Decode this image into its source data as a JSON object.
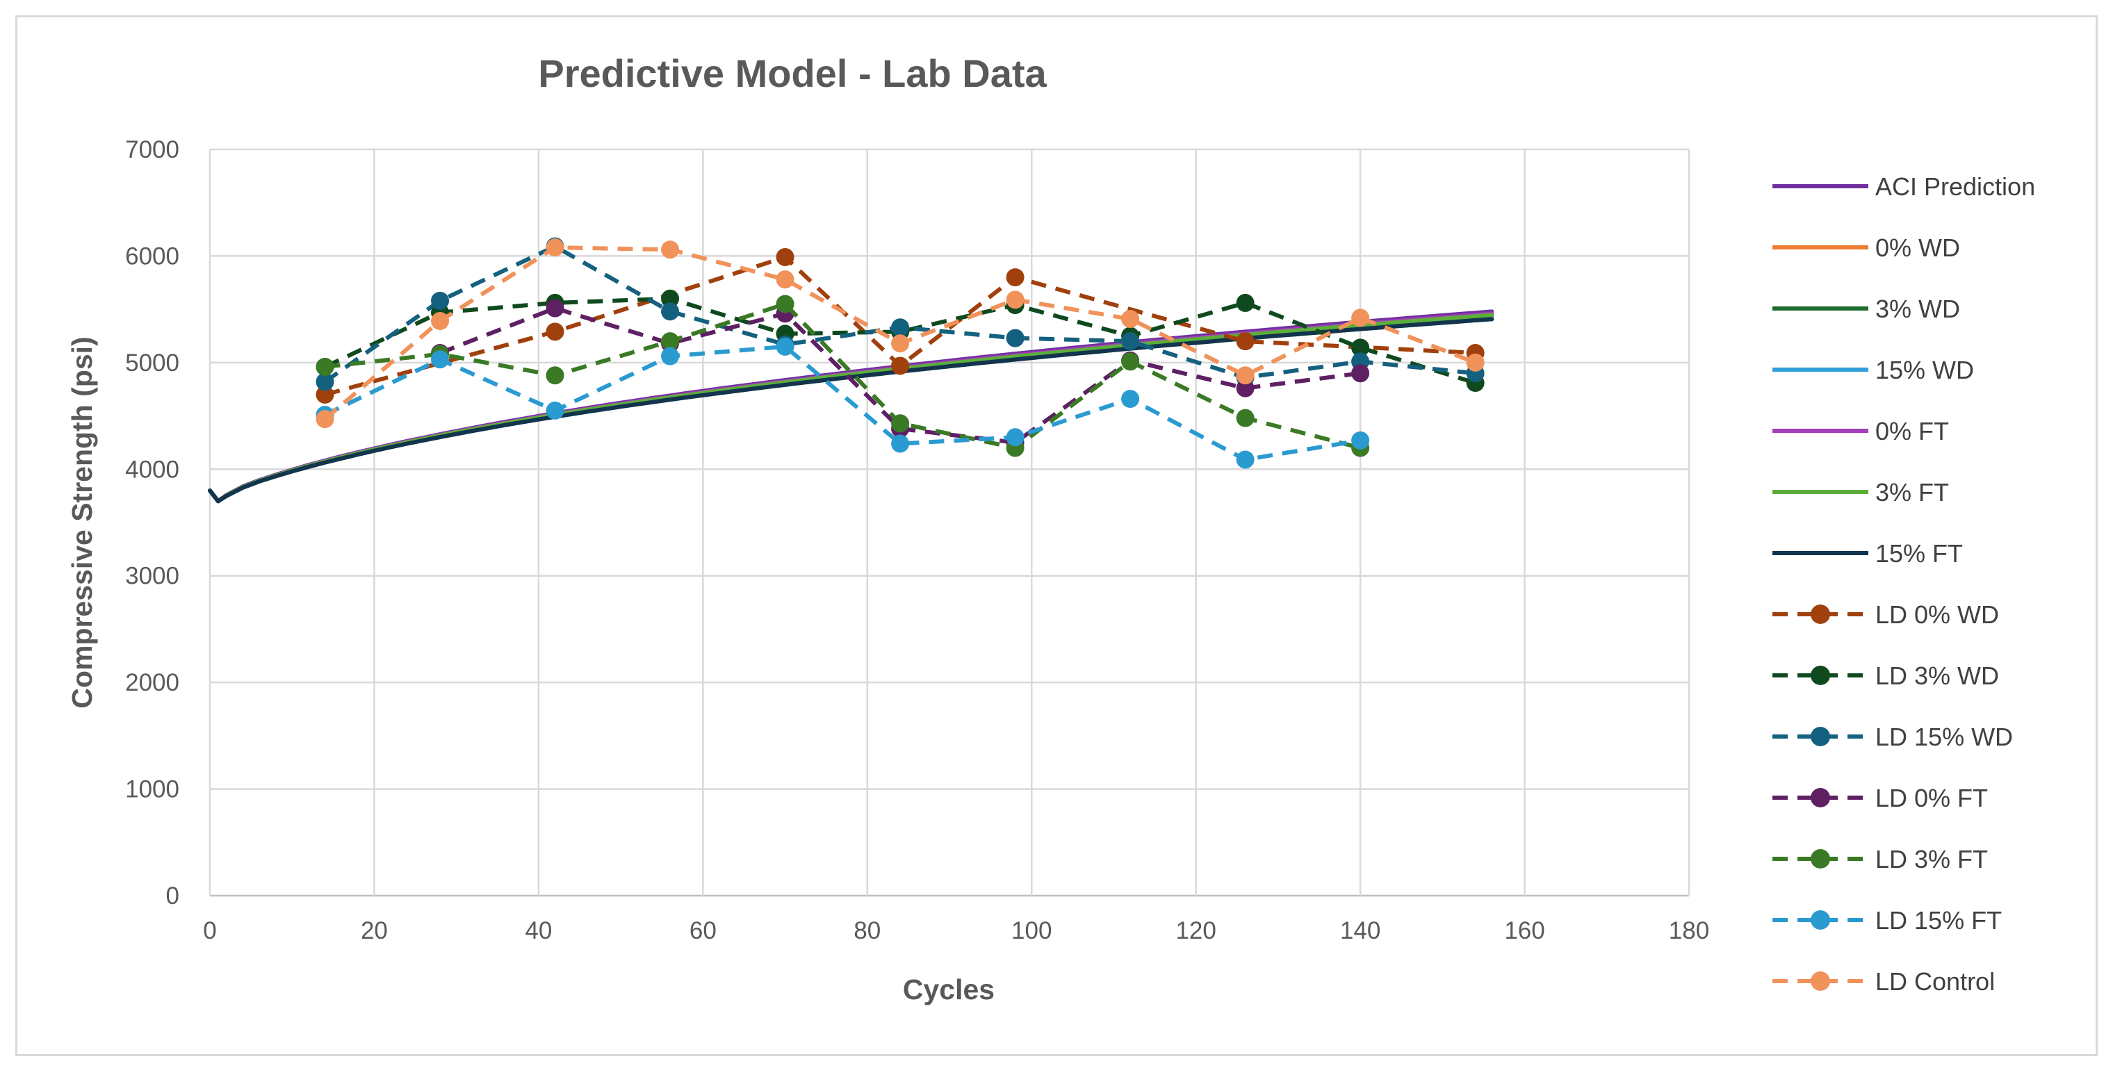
{
  "chart_data": {
    "type": "line",
    "title": "Predictive Model - Lab Data",
    "xlabel": "Cycles",
    "ylabel": "Compressive Strength (psi)",
    "xlim": [
      0,
      180
    ],
    "ylim": [
      0,
      7000
    ],
    "xticks": [
      0,
      20,
      40,
      60,
      80,
      100,
      120,
      140,
      160,
      180
    ],
    "yticks": [
      0,
      1000,
      2000,
      3000,
      4000,
      5000,
      6000,
      7000
    ],
    "grid": true,
    "legend_position": "right",
    "model_x": [
      0,
      1,
      2,
      4,
      6,
      8,
      10,
      12,
      14,
      16,
      18,
      20,
      22,
      24,
      26,
      28,
      30,
      32,
      34,
      36,
      38,
      40,
      42,
      44,
      46,
      48,
      50,
      52,
      54,
      56,
      58,
      60,
      62,
      64,
      66,
      68,
      70,
      72,
      74,
      76,
      78,
      80,
      82,
      84,
      86,
      88,
      90,
      92,
      94,
      96,
      98,
      100,
      102,
      104,
      106,
      108,
      110,
      112,
      114,
      116,
      118,
      120,
      122,
      124,
      126,
      128,
      130,
      132,
      134,
      136,
      138,
      140,
      142,
      144,
      146,
      148,
      150,
      152,
      154,
      156
    ],
    "series": [
      {
        "name": "ACI Prediction",
        "style": "line",
        "color": "#7030a0",
        "values": [
          3800,
          3700,
          3757,
          3838,
          3897,
          3948,
          3995,
          4040,
          4081,
          4121,
          4159,
          4195,
          4230,
          4264,
          4296,
          4328,
          4358,
          4388,
          4417,
          4445,
          4472,
          4499,
          4525,
          4550,
          4575,
          4599,
          4623,
          4646,
          4669,
          4691,
          4713,
          4734,
          4755,
          4776,
          4796,
          4816,
          4836,
          4855,
          4874,
          4893,
          4912,
          4930,
          4948,
          4966,
          4983,
          5000,
          5017,
          5034,
          5051,
          5067,
          5083,
          5099,
          5115,
          5130,
          5146,
          5161,
          5176,
          5191,
          5206,
          5220,
          5234,
          5248,
          5262,
          5276,
          5290,
          5303,
          5317,
          5330,
          5343,
          5356,
          5369,
          5382,
          5394,
          5406,
          5419,
          5431,
          5443,
          5455,
          5467,
          5479
        ]
      },
      {
        "name": "0% WD",
        "style": "line",
        "color": "#ed7d31",
        "values": [
          3800,
          3700,
          3751,
          3830,
          3888,
          3938,
          3984,
          4028,
          4068,
          4107,
          4144,
          4179,
          4214,
          4247,
          4279,
          4310,
          4339,
          4368,
          4397,
          4424,
          4451,
          4477,
          4502,
          4527,
          4551,
          4575,
          4598,
          4621,
          4643,
          4665,
          4686,
          4707,
          4727,
          4747,
          4767,
          4787,
          4806,
          4825,
          4843,
          4862,
          4880,
          4897,
          4915,
          4932,
          4949,
          4966,
          4983,
          4999,
          5015,
          5031,
          5047,
          5063,
          5078,
          5093,
          5108,
          5123,
          5138,
          5152,
          5167,
          5181,
          5195,
          5209,
          5222,
          5236,
          5249,
          5263,
          5276,
          5289,
          5302,
          5314,
          5327,
          5339,
          5352,
          5364,
          5376,
          5388,
          5400,
          5412,
          5423,
          5435
        ]
      },
      {
        "name": "3% WD",
        "style": "line",
        "color": "#1e6b2e",
        "values": [
          3800,
          3700,
          3749,
          3827,
          3885,
          3934,
          3980,
          4023,
          4063,
          4101,
          4138,
          4173,
          4207,
          4240,
          4271,
          4302,
          4331,
          4360,
          4388,
          4415,
          4441,
          4467,
          4492,
          4517,
          4541,
          4564,
          4587,
          4609,
          4631,
          4653,
          4674,
          4694,
          4714,
          4734,
          4754,
          4773,
          4792,
          4811,
          4829,
          4847,
          4865,
          4882,
          4899,
          4916,
          4933,
          4949,
          4966,
          4982,
          4998,
          5013,
          5029,
          5044,
          5059,
          5074,
          5089,
          5103,
          5118,
          5132,
          5146,
          5160,
          5173,
          5187,
          5200,
          5214,
          5227,
          5240,
          5253,
          5265,
          5278,
          5290,
          5303,
          5315,
          5327,
          5339,
          5351,
          5362,
          5374,
          5385,
          5397,
          5408
        ]
      },
      {
        "name": "15% WD",
        "style": "line",
        "color": "#2e9fd9",
        "values": [
          3800,
          3700,
          3751,
          3830,
          3888,
          3938,
          3984,
          4028,
          4068,
          4107,
          4144,
          4179,
          4214,
          4247,
          4279,
          4310,
          4339,
          4368,
          4397,
          4424,
          4451,
          4477,
          4502,
          4527,
          4551,
          4575,
          4598,
          4621,
          4643,
          4665,
          4686,
          4707,
          4727,
          4747,
          4767,
          4787,
          4806,
          4825,
          4843,
          4862,
          4880,
          4897,
          4915,
          4932,
          4949,
          4966,
          4983,
          4999,
          5015,
          5031,
          5047,
          5063,
          5078,
          5093,
          5108,
          5123,
          5138,
          5152,
          5167,
          5181,
          5195,
          5209,
          5222,
          5236,
          5249,
          5263,
          5276,
          5289,
          5302,
          5314,
          5327,
          5339,
          5352,
          5364,
          5376,
          5388,
          5400,
          5412,
          5423,
          5435
        ]
      },
      {
        "name": "0% FT",
        "style": "line",
        "color": "#a63fb8",
        "values": [
          3800,
          3700,
          3755,
          3835,
          3894,
          3944,
          3991,
          4036,
          4077,
          4116,
          4154,
          4190,
          4225,
          4258,
          4290,
          4321,
          4351,
          4381,
          4409,
          4437,
          4464,
          4490,
          4516,
          4541,
          4565,
          4589,
          4613,
          4636,
          4658,
          4680,
          4702,
          4723,
          4744,
          4764,
          4784,
          4804,
          4823,
          4842,
          4861,
          4880,
          4898,
          4916,
          4934,
          4951,
          4968,
          4985,
          5002,
          5019,
          5035,
          5051,
          5067,
          5083,
          5098,
          5114,
          5129,
          5144,
          5159,
          5173,
          5188,
          5202,
          5216,
          5230,
          5244,
          5258,
          5271,
          5285,
          5298,
          5311,
          5324,
          5337,
          5350,
          5362,
          5375,
          5387,
          5399,
          5411,
          5423,
          5435,
          5447,
          5459
        ]
      },
      {
        "name": "3% FT",
        "style": "line",
        "color": "#5bae3a",
        "values": [
          3800,
          3700,
          3753,
          3833,
          3891,
          3941,
          3988,
          4032,
          4073,
          4112,
          4149,
          4185,
          4219,
          4252,
          4285,
          4316,
          4346,
          4375,
          4403,
          4431,
          4458,
          4484,
          4510,
          4535,
          4559,
          4583,
          4606,
          4629,
          4651,
          4673,
          4694,
          4715,
          4736,
          4756,
          4776,
          4796,
          4815,
          4834,
          4853,
          4871,
          4889,
          4907,
          4924,
          4942,
          4959,
          4976,
          4992,
          5009,
          5025,
          5041,
          5057,
          5072,
          5088,
          5103,
          5118,
          5133,
          5148,
          5162,
          5177,
          5191,
          5205,
          5219,
          5233,
          5246,
          5260,
          5273,
          5286,
          5299,
          5312,
          5325,
          5338,
          5350,
          5363,
          5375,
          5387,
          5399,
          5411,
          5423,
          5435,
          5446
        ]
      },
      {
        "name": "15% FT",
        "style": "line",
        "color": "#12344d",
        "values": [
          3800,
          3700,
          3749,
          3827,
          3885,
          3934,
          3980,
          4023,
          4063,
          4101,
          4138,
          4173,
          4207,
          4240,
          4271,
          4302,
          4331,
          4360,
          4388,
          4415,
          4441,
          4467,
          4492,
          4517,
          4541,
          4564,
          4587,
          4609,
          4631,
          4653,
          4674,
          4694,
          4714,
          4734,
          4754,
          4773,
          4792,
          4811,
          4829,
          4847,
          4865,
          4882,
          4899,
          4916,
          4933,
          4949,
          4966,
          4982,
          4998,
          5013,
          5029,
          5044,
          5059,
          5074,
          5089,
          5103,
          5118,
          5132,
          5146,
          5160,
          5173,
          5187,
          5200,
          5214,
          5227,
          5240,
          5253,
          5265,
          5278,
          5290,
          5303,
          5315,
          5327,
          5339,
          5351,
          5362,
          5374,
          5385,
          5397,
          5408
        ]
      },
      {
        "name": "LD 0% WD",
        "style": "dashed-marker",
        "color": "#a0400c",
        "x": [
          14,
          42,
          70,
          84,
          98,
          126,
          154
        ],
        "values": [
          4700,
          5290,
          5990,
          4970,
          5800,
          5200,
          5090
        ]
      },
      {
        "name": "LD 3% WD",
        "style": "dashed-marker",
        "color": "#0f4a1e",
        "x": [
          14,
          28,
          42,
          56,
          70,
          84,
          98,
          112,
          126,
          140,
          154
        ],
        "values": [
          4960,
          5470,
          5560,
          5600,
          5270,
          5290,
          5540,
          5250,
          5560,
          5140,
          4810
        ]
      },
      {
        "name": "LD 15% WD",
        "style": "dashed-marker",
        "color": "#14607f",
        "x": [
          14,
          28,
          42,
          56,
          70,
          84,
          98,
          112,
          126,
          140,
          154
        ],
        "values": [
          4820,
          5580,
          6090,
          5480,
          5170,
          5330,
          5230,
          5200,
          4860,
          5010,
          4900
        ]
      },
      {
        "name": "LD 0% FT",
        "style": "dashed-marker",
        "color": "#5e1f63",
        "x": [
          28,
          42,
          56,
          70,
          84,
          98,
          112,
          126,
          140
        ],
        "values": [
          5090,
          5510,
          5180,
          5460,
          4380,
          4250,
          5020,
          4760,
          4900
        ]
      },
      {
        "name": "LD 3% FT",
        "style": "dashed-marker",
        "color": "#3a7a25",
        "x": [
          14,
          28,
          42,
          56,
          70,
          84,
          98,
          112,
          126,
          140
        ],
        "values": [
          4960,
          5080,
          4880,
          5200,
          5550,
          4430,
          4200,
          5010,
          4480,
          4200
        ]
      },
      {
        "name": "LD 15% FT",
        "style": "dashed-marker",
        "color": "#2a9bd0",
        "x": [
          14,
          28,
          42,
          56,
          70,
          84,
          98,
          112,
          126,
          140
        ],
        "values": [
          4510,
          5030,
          4550,
          5060,
          5150,
          4240,
          4300,
          4660,
          4090,
          4270
        ]
      },
      {
        "name": "LD Control",
        "style": "dashed-marker",
        "color": "#f0925a",
        "x": [
          14,
          28,
          42,
          56,
          70,
          84,
          98,
          112,
          126,
          140,
          154
        ],
        "values": [
          4470,
          5390,
          6080,
          6060,
          5780,
          5180,
          5590,
          5410,
          4880,
          5420,
          5000
        ]
      }
    ]
  }
}
